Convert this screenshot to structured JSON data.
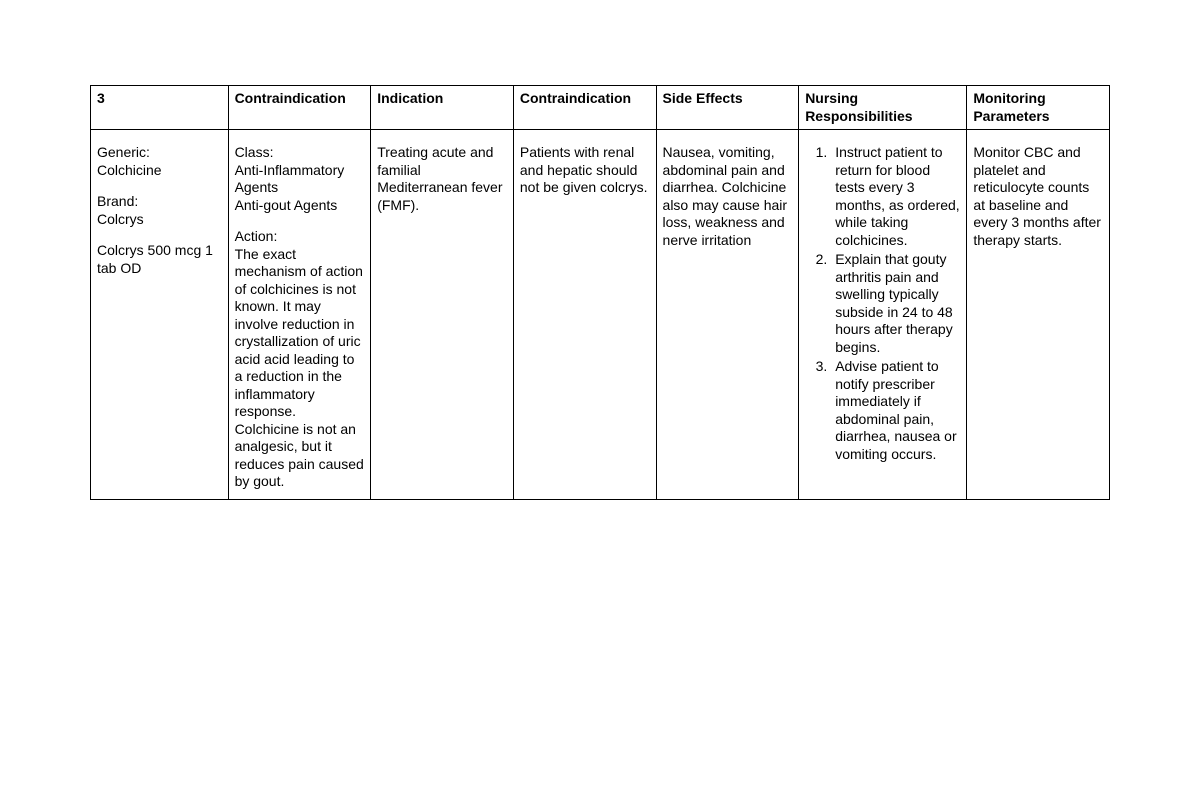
{
  "table": {
    "headers": {
      "h1": "3",
      "h2": "Contraindication",
      "h3": "Indication",
      "h4": "Contraindication",
      "h5": "Side Effects",
      "h6": "Nursing Responsibilities",
      "h7": "Monitoring Parameters"
    },
    "row": {
      "drug": {
        "generic_label": "Generic:",
        "generic_value": "Colchicine",
        "brand_label": "Brand:",
        "brand_value": "Colcrys",
        "dose": "Colcrys 500 mcg 1 tab OD"
      },
      "class_action": {
        "class_label": "Class:",
        "class_line1": "Anti-Inflammatory Agents",
        "class_line2": "Anti-gout Agents",
        "action_label": "Action:",
        "action_text": "The exact mechanism of action of colchicines is not known. It may involve reduction in crystallization of uric acid acid leading to a reduction in the inflammatory response. Colchicine is not an analgesic, but it reduces pain caused by gout."
      },
      "indication": "Treating acute and familial Mediterranean fever (FMF).",
      "contraindication2": "Patients with renal and hepatic should not be given colcrys.",
      "side_effects": "Nausea, vomiting, abdominal pain and diarrhea. Colchicine also may cause hair loss, weakness and nerve irritation",
      "nursing": {
        "item1": "Instruct patient to return for blood tests every 3 months, as ordered, while taking colchicines.",
        "item2": "Explain that gouty arthritis pain and swelling typically subside in 24 to 48 hours after therapy begins.",
        "item3": "Advise patient to notify prescriber immediately if abdominal pain, diarrhea, nausea or vomiting occurs."
      },
      "monitoring": "Monitor CBC and platelet and reticulocyte counts at baseline and every 3 months after therapy starts."
    }
  }
}
